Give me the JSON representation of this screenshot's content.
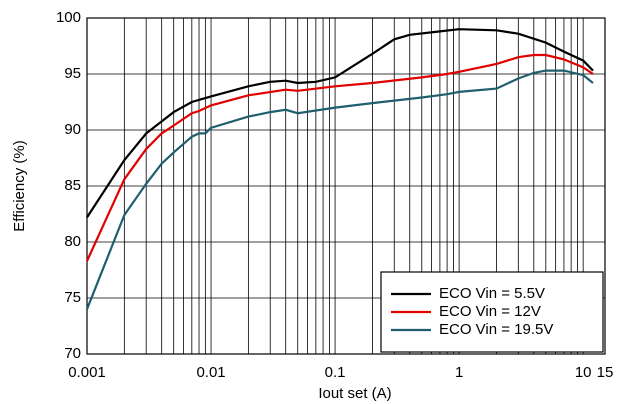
{
  "chart_data": {
    "type": "line",
    "x_label": "Iout  set (A)",
    "y_label": "Efficiency (%)",
    "xlim": [
      0.001,
      15
    ],
    "ylim": [
      70,
      100
    ],
    "x_log": true,
    "grid": true,
    "minor_grid": true,
    "xticks": [
      0.001,
      0.01,
      0.1,
      1,
      10,
      15
    ],
    "yticks": [
      70,
      75,
      80,
      85,
      90,
      95,
      100
    ],
    "legend": "lower right",
    "series": [
      {
        "name": "ECO Vin = 5.5V",
        "color": "#000000",
        "x": [
          0.001,
          0.002,
          0.003,
          0.005,
          0.007,
          0.01,
          0.02,
          0.03,
          0.04,
          0.05,
          0.07,
          0.1,
          0.2,
          0.3,
          0.4,
          0.7,
          1,
          2,
          3,
          5,
          7,
          10,
          12
        ],
        "values": [
          82.2,
          87.3,
          89.7,
          91.6,
          92.5,
          93.0,
          93.9,
          94.3,
          94.4,
          94.2,
          94.3,
          94.7,
          96.8,
          98.1,
          98.5,
          98.8,
          99.0,
          98.9,
          98.6,
          97.8,
          97.0,
          96.2,
          95.3
        ]
      },
      {
        "name": "ECO Vin = 12V",
        "color": "#e00000",
        "x": [
          0.001,
          0.002,
          0.003,
          0.004,
          0.005,
          0.007,
          0.008,
          0.01,
          0.02,
          0.04,
          0.05,
          0.1,
          0.2,
          0.5,
          0.8,
          1,
          2,
          3,
          4,
          5,
          7,
          10,
          12
        ],
        "values": [
          78.3,
          85.6,
          88.3,
          89.7,
          90.4,
          91.5,
          91.7,
          92.2,
          93.1,
          93.6,
          93.5,
          93.9,
          94.2,
          94.7,
          95.0,
          95.2,
          95.9,
          96.5,
          96.7,
          96.7,
          96.3,
          95.6,
          95.0
        ]
      },
      {
        "name": "ECO Vin = 19.5V",
        "color": "#1f5f6e",
        "x": [
          0.001,
          0.002,
          0.003,
          0.004,
          0.005,
          0.007,
          0.008,
          0.009,
          0.01,
          0.02,
          0.03,
          0.04,
          0.05,
          0.1,
          0.2,
          0.5,
          0.8,
          1,
          2,
          3,
          4,
          5,
          7,
          10,
          12
        ],
        "values": [
          74.0,
          82.4,
          85.2,
          87.0,
          88.0,
          89.4,
          89.7,
          89.7,
          90.2,
          91.2,
          91.6,
          91.8,
          91.5,
          92.0,
          92.4,
          92.9,
          93.2,
          93.4,
          93.7,
          94.6,
          95.1,
          95.3,
          95.3,
          94.9,
          94.2
        ]
      }
    ]
  }
}
